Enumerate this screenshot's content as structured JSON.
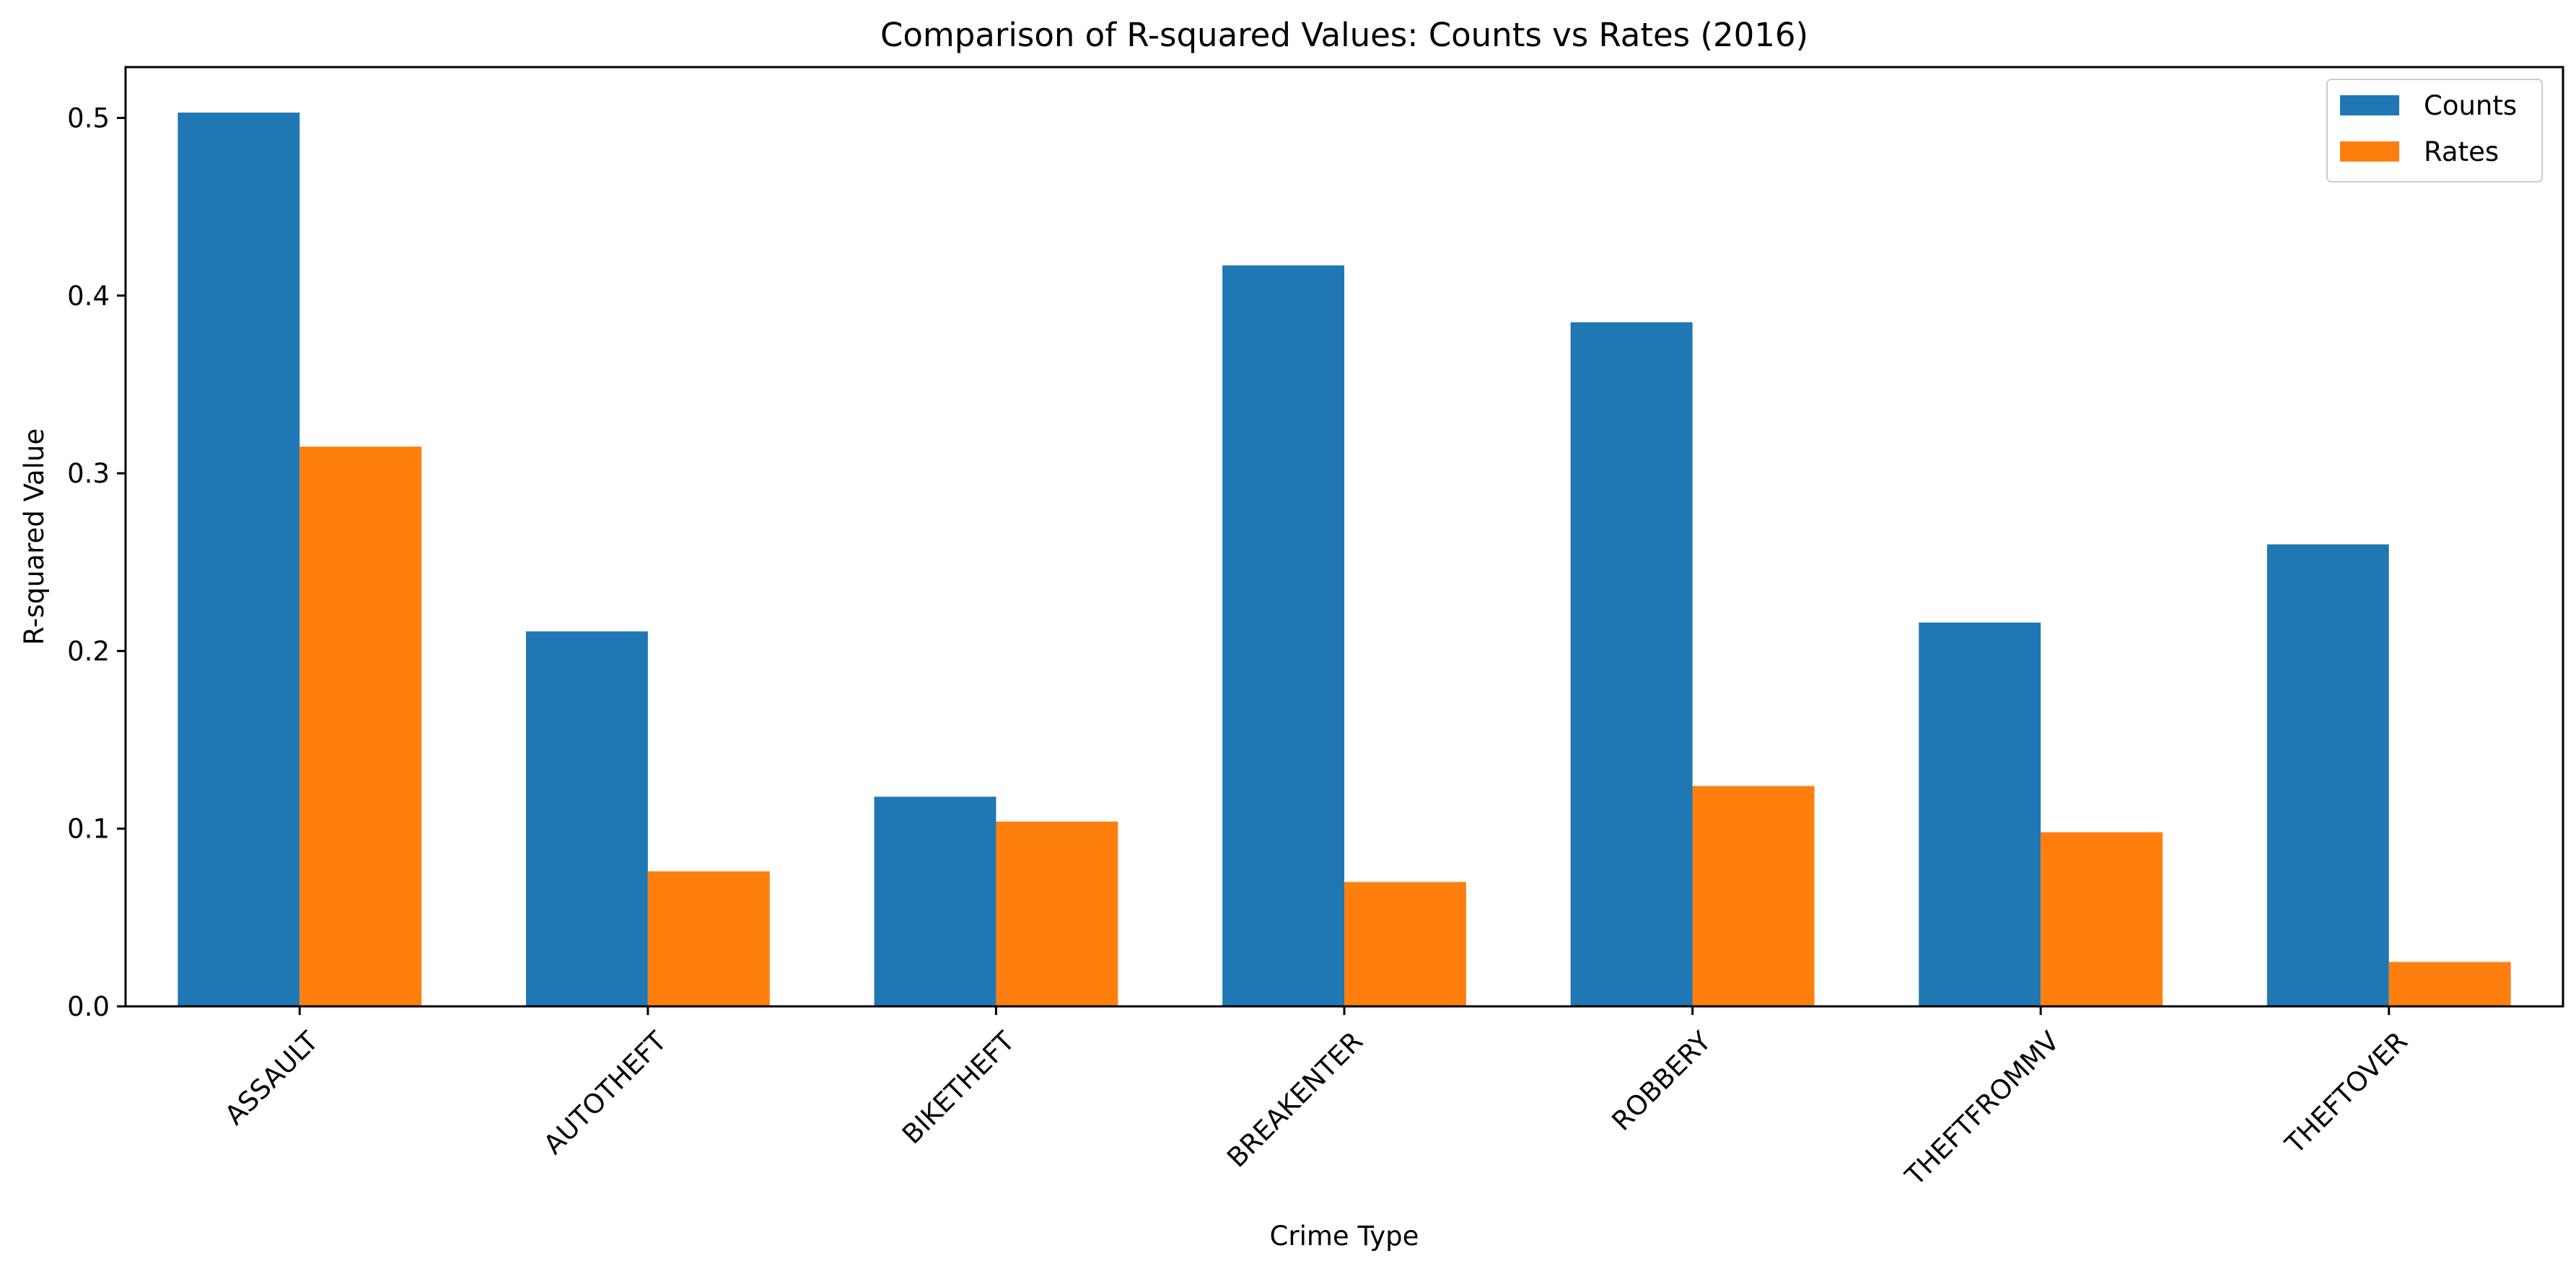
{
  "chart_data": {
    "type": "bar",
    "title": "Comparison of R-squared Values: Counts vs Rates (2016)",
    "xlabel": "Crime Type",
    "ylabel": "R-squared Value",
    "categories": [
      "ASSAULT",
      "AUTOTHEFT",
      "BIKETHEFT",
      "BREAKENTER",
      "ROBBERY",
      "THEFTFROMMV",
      "THEFTOVER"
    ],
    "series": [
      {
        "name": "Counts",
        "color": "#1f77b4",
        "values": [
          0.503,
          0.211,
          0.118,
          0.417,
          0.385,
          0.216,
          0.26
        ]
      },
      {
        "name": "Rates",
        "color": "#ff7f0e",
        "values": [
          0.315,
          0.076,
          0.104,
          0.07,
          0.124,
          0.098,
          0.025
        ]
      }
    ],
    "ylim": [
      0,
      0.5286
    ],
    "yticks": [
      0.0,
      0.1,
      0.2,
      0.3,
      0.4,
      0.5
    ],
    "ytick_labels": [
      "0.0",
      "0.1",
      "0.2",
      "0.3",
      "0.4",
      "0.5"
    ],
    "grid": false,
    "legend_position": "top-right",
    "xtick_rotation_deg": 45
  }
}
